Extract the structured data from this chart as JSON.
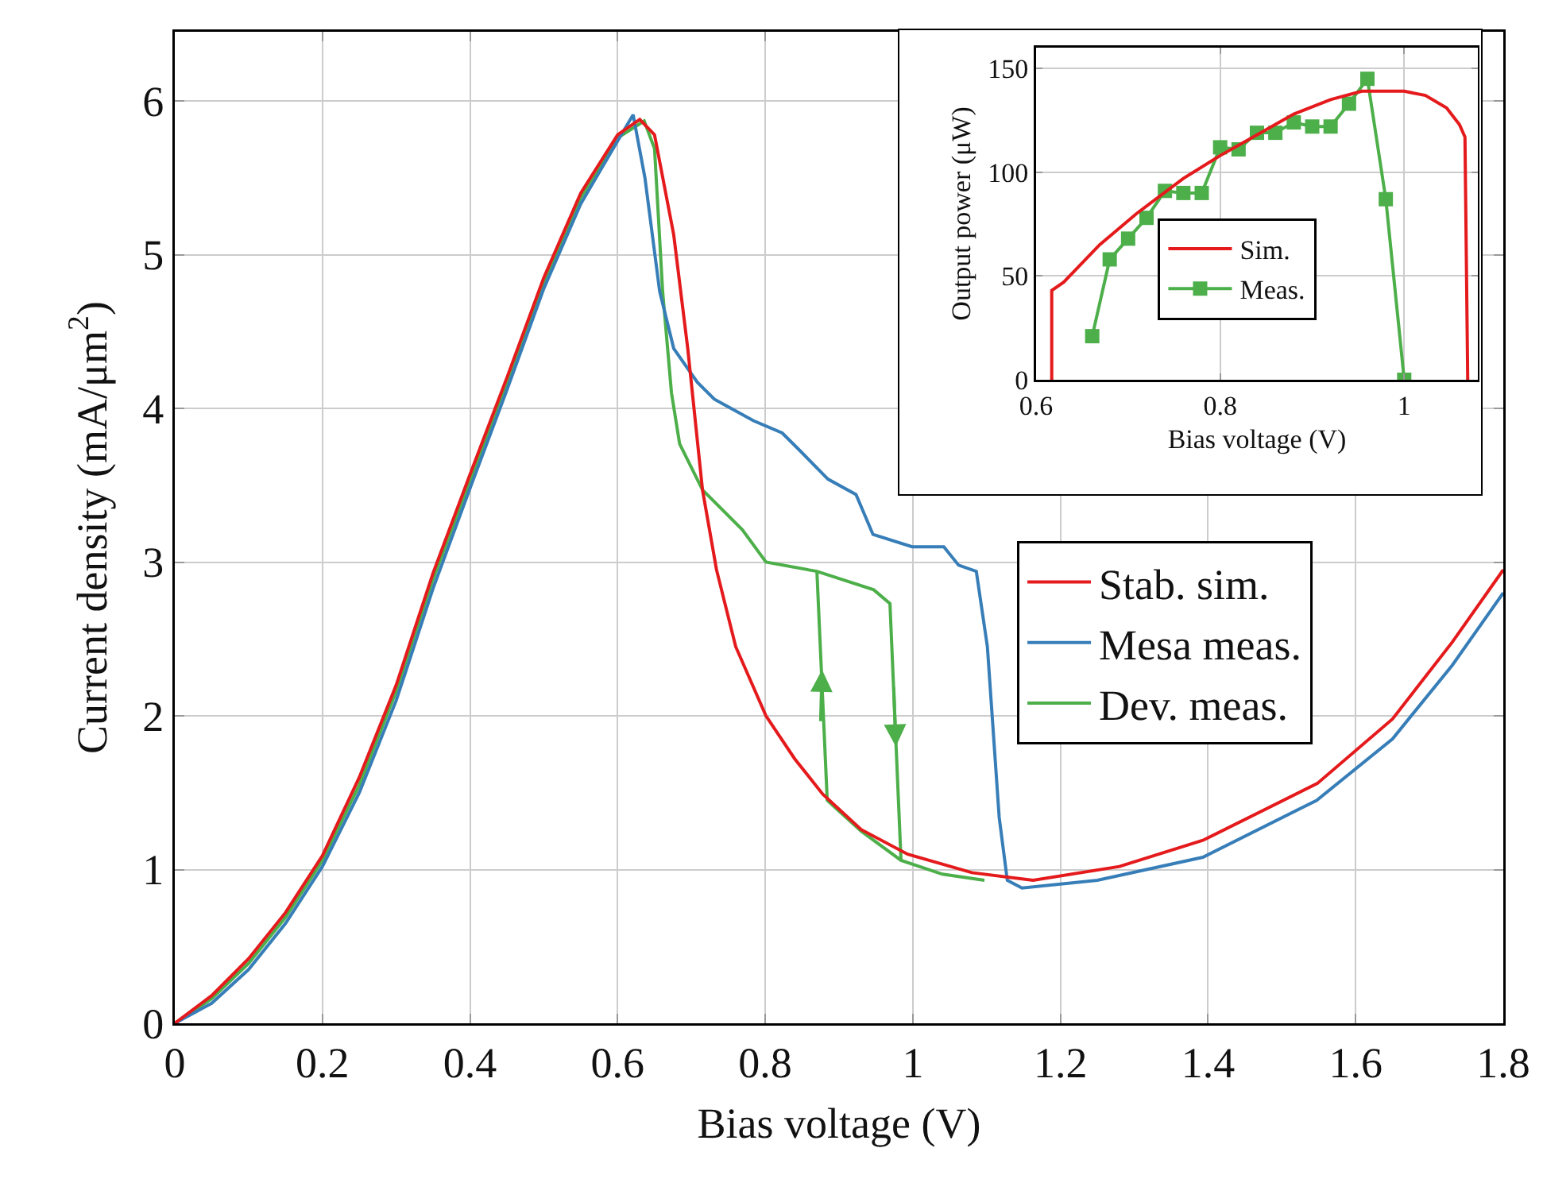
{
  "chart_data": [
    {
      "type": "line",
      "xlabel": "Bias voltage (V)",
      "ylabel": "Current density (mA/μm$^{2}$)",
      "xlim": [
        0,
        1.8
      ],
      "ylim": [
        0,
        6.45
      ],
      "xticks": [
        0,
        0.2,
        0.4,
        0.6,
        0.8,
        1,
        1.2,
        1.4,
        1.6,
        1.8
      ],
      "yticks": [
        0,
        1,
        2,
        3,
        4,
        5,
        6
      ],
      "grid": true,
      "legend": "right",
      "line_style": "solid",
      "series": [
        {
          "name": "Stab. sim.",
          "color": "#e41a1c",
          "x": [
            0,
            0.05,
            0.1,
            0.15,
            0.2,
            0.25,
            0.3,
            0.35,
            0.4,
            0.45,
            0.5,
            0.55,
            0.6,
            0.63,
            0.65,
            0.676,
            0.695,
            0.715,
            0.734,
            0.76,
            0.801,
            0.84,
            0.878,
            0.93,
            0.993,
            1.08,
            1.163,
            1.28,
            1.393,
            1.548,
            1.65,
            1.731,
            1.8
          ],
          "values": [
            0,
            0.18,
            0.42,
            0.72,
            1.09,
            1.6,
            2.2,
            2.93,
            3.57,
            4.2,
            4.85,
            5.4,
            5.78,
            5.88,
            5.78,
            5.13,
            4.39,
            3.47,
            2.95,
            2.45,
            2.0,
            1.72,
            1.49,
            1.26,
            1.1,
            0.98,
            0.93,
            1.02,
            1.19,
            1.56,
            1.98,
            2.48,
            2.95
          ]
        },
        {
          "name": "Mesa meas.",
          "color": "#377eb8",
          "x": [
            0,
            0.05,
            0.1,
            0.15,
            0.2,
            0.25,
            0.3,
            0.35,
            0.4,
            0.45,
            0.5,
            0.55,
            0.6,
            0.621,
            0.637,
            0.657,
            0.676,
            0.708,
            0.731,
            0.784,
            0.823,
            0.846,
            0.885,
            0.923,
            0.946,
            0.999,
            1.042,
            1.062,
            1.086,
            1.101,
            1.117,
            1.128,
            1.148,
            1.25,
            1.393,
            1.547,
            1.65,
            1.731,
            1.8
          ],
          "values": [
            0,
            0.13,
            0.35,
            0.65,
            1.02,
            1.5,
            2.1,
            2.83,
            3.48,
            4.12,
            4.78,
            5.33,
            5.74,
            5.91,
            5.5,
            4.76,
            4.39,
            4.17,
            4.06,
            3.92,
            3.84,
            3.73,
            3.54,
            3.44,
            3.18,
            3.1,
            3.1,
            2.98,
            2.94,
            2.45,
            1.34,
            0.93,
            0.88,
            0.93,
            1.08,
            1.45,
            1.85,
            2.33,
            2.8
          ]
        },
        {
          "name": "Dev. meas.",
          "color": "#4daf4a",
          "x": [
            0,
            0.05,
            0.1,
            0.15,
            0.2,
            0.25,
            0.3,
            0.35,
            0.4,
            0.45,
            0.5,
            0.55,
            0.6,
            0.636,
            0.65,
            0.661,
            0.673,
            0.684,
            0.715,
            0.769,
            0.801,
            0.87,
            0.947,
            0.969,
            0.984,
            1.04,
            1.097,
            1.04,
            0.984,
            0.93,
            0.884,
            0.87
          ],
          "values": [
            0,
            0.16,
            0.39,
            0.69,
            1.06,
            1.55,
            2.16,
            2.89,
            3.53,
            4.17,
            4.82,
            5.37,
            5.76,
            5.87,
            5.69,
            4.76,
            4.1,
            3.77,
            3.47,
            3.21,
            3.0,
            2.94,
            2.82,
            2.73,
            1.06,
            0.97,
            0.93,
            0.97,
            1.06,
            1.25,
            1.45,
            2.94
          ]
        }
      ]
    },
    {
      "type": "line",
      "xlabel": "Bias voltage (V)",
      "ylabel": "Output power (μW)",
      "xlim": [
        0.6,
        1.08
      ],
      "ylim": [
        0,
        160
      ],
      "xticks": [
        0.6,
        0.8,
        1
      ],
      "yticks": [
        0,
        50,
        100,
        150
      ],
      "grid": true,
      "legend": "bottom",
      "series": [
        {
          "name": "Sim.",
          "color": "#e41a1c",
          "line_style": "solid",
          "marker": "none",
          "x": [
            0.617,
            0.617,
            0.63,
            0.669,
            0.709,
            0.76,
            0.8,
            0.84,
            0.88,
            0.92,
            0.954,
            1.0,
            1.023,
            1.046,
            1.06,
            1.066,
            1.069
          ],
          "values": [
            0,
            43,
            47,
            65,
            80,
            97,
            108,
            118,
            128,
            135,
            139,
            139,
            137,
            131,
            123,
            117,
            0
          ]
        },
        {
          "name": "Meas.",
          "color": "#4daf4a",
          "line_style": "solid",
          "marker": "square",
          "x": [
            0.661,
            0.68,
            0.7,
            0.72,
            0.74,
            0.76,
            0.78,
            0.8,
            0.82,
            0.84,
            0.86,
            0.88,
            0.9,
            0.92,
            0.94,
            0.96,
            0.98,
            1.0
          ],
          "values": [
            21,
            58,
            68,
            78,
            91,
            90,
            90,
            112,
            111,
            119,
            119,
            124,
            122,
            122,
            133,
            145,
            87,
            0
          ]
        }
      ]
    }
  ]
}
